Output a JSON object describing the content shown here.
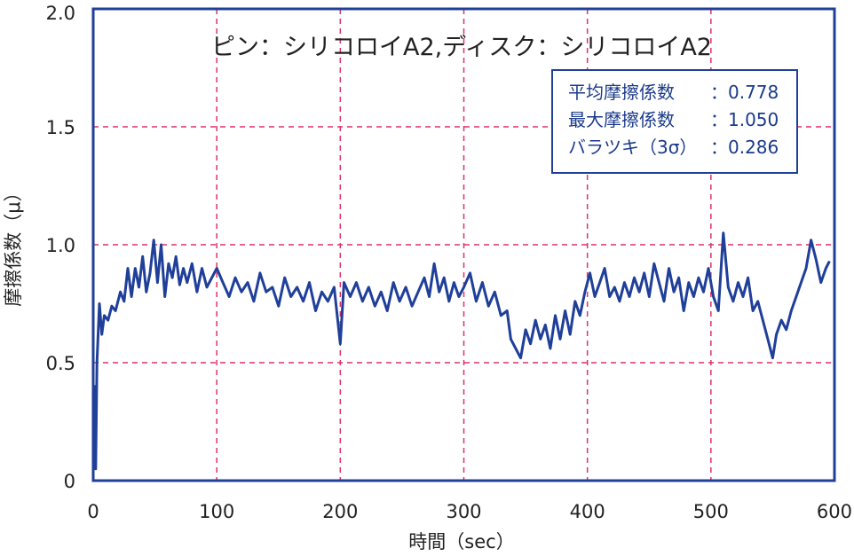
{
  "chart_data": {
    "type": "line",
    "title": "ピン：シリコロイA2,ディスク：シリコロイA2",
    "xlabel": "時間（sec）",
    "ylabel": "摩擦係数（μ）",
    "xlim": [
      0,
      600
    ],
    "ylim": [
      0,
      2.0
    ],
    "x_ticks": [
      0,
      100,
      200,
      300,
      400,
      500,
      600
    ],
    "x_tick_labels": [
      "0",
      "100",
      "200",
      "300",
      "400",
      "500",
      "600"
    ],
    "y_ticks": [
      0,
      0.5,
      1.0,
      1.5,
      2.0
    ],
    "y_tick_labels": [
      "0",
      "0.5",
      "1.0",
      "1.5",
      "2.0"
    ],
    "grid": true,
    "colors": {
      "series": "#1f3f99",
      "grid": "#e0306a",
      "frame": "#1f3f99"
    },
    "stats": [
      {
        "label": "平均摩擦係数",
        "value": "：0.778"
      },
      {
        "label": "最大摩擦係数",
        "value": "：1.050"
      },
      {
        "label": "バラツキ（3σ）",
        "value": "：0.286"
      }
    ],
    "series": [
      {
        "points": [
          [
            0,
            0.05
          ],
          [
            1,
            0.4
          ],
          [
            2,
            0.05
          ],
          [
            3,
            0.5
          ],
          [
            5,
            0.75
          ],
          [
            7,
            0.62
          ],
          [
            9,
            0.7
          ],
          [
            12,
            0.68
          ],
          [
            15,
            0.74
          ],
          [
            18,
            0.72
          ],
          [
            22,
            0.8
          ],
          [
            25,
            0.76
          ],
          [
            28,
            0.9
          ],
          [
            31,
            0.78
          ],
          [
            34,
            0.9
          ],
          [
            37,
            0.82
          ],
          [
            40,
            0.95
          ],
          [
            43,
            0.8
          ],
          [
            46,
            0.88
          ],
          [
            49,
            1.02
          ],
          [
            52,
            0.84
          ],
          [
            55,
            1.0
          ],
          [
            58,
            0.78
          ],
          [
            61,
            0.92
          ],
          [
            64,
            0.86
          ],
          [
            67,
            0.95
          ],
          [
            70,
            0.83
          ],
          [
            73,
            0.9
          ],
          [
            76,
            0.84
          ],
          [
            80,
            0.92
          ],
          [
            84,
            0.8
          ],
          [
            88,
            0.9
          ],
          [
            92,
            0.82
          ],
          [
            96,
            0.86
          ],
          [
            100,
            0.9
          ],
          [
            105,
            0.84
          ],
          [
            110,
            0.78
          ],
          [
            115,
            0.86
          ],
          [
            120,
            0.8
          ],
          [
            125,
            0.84
          ],
          [
            130,
            0.76
          ],
          [
            135,
            0.88
          ],
          [
            140,
            0.8
          ],
          [
            145,
            0.82
          ],
          [
            150,
            0.74
          ],
          [
            155,
            0.86
          ],
          [
            160,
            0.78
          ],
          [
            165,
            0.82
          ],
          [
            170,
            0.76
          ],
          [
            175,
            0.84
          ],
          [
            180,
            0.72
          ],
          [
            185,
            0.8
          ],
          [
            190,
            0.76
          ],
          [
            195,
            0.82
          ],
          [
            200,
            0.58
          ],
          [
            203,
            0.84
          ],
          [
            208,
            0.78
          ],
          [
            213,
            0.84
          ],
          [
            218,
            0.76
          ],
          [
            223,
            0.82
          ],
          [
            228,
            0.74
          ],
          [
            233,
            0.8
          ],
          [
            238,
            0.72
          ],
          [
            243,
            0.84
          ],
          [
            248,
            0.76
          ],
          [
            253,
            0.82
          ],
          [
            258,
            0.74
          ],
          [
            263,
            0.8
          ],
          [
            268,
            0.86
          ],
          [
            272,
            0.78
          ],
          [
            276,
            0.92
          ],
          [
            280,
            0.8
          ],
          [
            284,
            0.86
          ],
          [
            288,
            0.76
          ],
          [
            292,
            0.84
          ],
          [
            296,
            0.78
          ],
          [
            300,
            0.82
          ],
          [
            305,
            0.88
          ],
          [
            310,
            0.76
          ],
          [
            315,
            0.84
          ],
          [
            320,
            0.74
          ],
          [
            325,
            0.8
          ],
          [
            330,
            0.7
          ],
          [
            335,
            0.72
          ],
          [
            338,
            0.6
          ],
          [
            342,
            0.56
          ],
          [
            346,
            0.52
          ],
          [
            350,
            0.64
          ],
          [
            354,
            0.58
          ],
          [
            358,
            0.68
          ],
          [
            362,
            0.6
          ],
          [
            366,
            0.66
          ],
          [
            370,
            0.56
          ],
          [
            374,
            0.7
          ],
          [
            378,
            0.6
          ],
          [
            382,
            0.72
          ],
          [
            386,
            0.62
          ],
          [
            390,
            0.76
          ],
          [
            394,
            0.7
          ],
          [
            398,
            0.8
          ],
          [
            402,
            0.88
          ],
          [
            406,
            0.78
          ],
          [
            410,
            0.84
          ],
          [
            414,
            0.9
          ],
          [
            418,
            0.78
          ],
          [
            422,
            0.82
          ],
          [
            426,
            0.76
          ],
          [
            430,
            0.84
          ],
          [
            434,
            0.78
          ],
          [
            438,
            0.86
          ],
          [
            442,
            0.8
          ],
          [
            446,
            0.88
          ],
          [
            450,
            0.78
          ],
          [
            454,
            0.92
          ],
          [
            458,
            0.84
          ],
          [
            462,
            0.76
          ],
          [
            466,
            0.9
          ],
          [
            470,
            0.8
          ],
          [
            474,
            0.86
          ],
          [
            478,
            0.72
          ],
          [
            482,
            0.84
          ],
          [
            486,
            0.78
          ],
          [
            490,
            0.86
          ],
          [
            494,
            0.8
          ],
          [
            498,
            0.9
          ],
          [
            502,
            0.78
          ],
          [
            506,
            0.72
          ],
          [
            510,
            1.05
          ],
          [
            514,
            0.82
          ],
          [
            518,
            0.76
          ],
          [
            522,
            0.84
          ],
          [
            526,
            0.78
          ],
          [
            530,
            0.86
          ],
          [
            534,
            0.72
          ],
          [
            538,
            0.76
          ],
          [
            542,
            0.68
          ],
          [
            546,
            0.6
          ],
          [
            550,
            0.52
          ],
          [
            553,
            0.62
          ],
          [
            557,
            0.68
          ],
          [
            561,
            0.64
          ],
          [
            565,
            0.72
          ],
          [
            569,
            0.78
          ],
          [
            573,
            0.84
          ],
          [
            577,
            0.9
          ],
          [
            581,
            1.02
          ],
          [
            585,
            0.94
          ],
          [
            589,
            0.84
          ],
          [
            593,
            0.9
          ],
          [
            596,
            0.93
          ]
        ]
      }
    ]
  }
}
